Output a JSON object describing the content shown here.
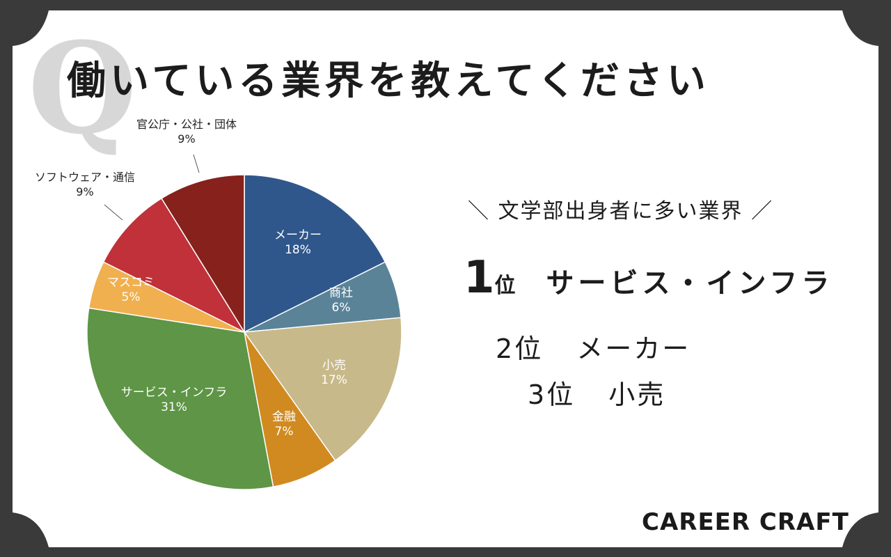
{
  "title": "働いている業界を教えてください",
  "q_mark": "Q",
  "chart_data": {
    "type": "pie",
    "title": "",
    "slices": [
      {
        "label": "メーカー",
        "percent_label": "18%",
        "value": 18,
        "color": "#2f578b",
        "text_color": "#ffffff"
      },
      {
        "label": "商社",
        "percent_label": "6%",
        "value": 6,
        "color": "#5a8398",
        "text_color": "#ffffff"
      },
      {
        "label": "小売",
        "percent_label": "17%",
        "value": 17,
        "color": "#c8b98a",
        "text_color": "#ffffff"
      },
      {
        "label": "金融",
        "percent_label": "7%",
        "value": 7,
        "color": "#d18a1f",
        "text_color": "#ffffff"
      },
      {
        "label": "サービス・インフラ",
        "percent_label": "31%",
        "value": 31,
        "color": "#5e9546",
        "text_color": "#ffffff"
      },
      {
        "label": "マスコミ",
        "percent_label": "5%",
        "value": 5,
        "color": "#f0b04f",
        "text_color": "#ffffff"
      },
      {
        "label": "ソフトウェア・通信",
        "percent_label": "9%",
        "value": 9,
        "color": "#c0313a",
        "text_color": "#222222"
      },
      {
        "label": "官公庁・公社・団体",
        "percent_label": "9%",
        "value": 9,
        "color": "#86211c",
        "text_color": "#222222"
      }
    ]
  },
  "ranking": {
    "heading": "＼ 文学部出身者に多い業界 ／",
    "items": [
      {
        "rank": "1",
        "unit": "位",
        "name": "サービス・インフラ"
      },
      {
        "rank": "2",
        "unit": "位",
        "name": "メーカー"
      },
      {
        "rank": "3",
        "unit": "位",
        "name": "小売"
      }
    ]
  },
  "brand": "CAREER CRAFT",
  "colors": {
    "background": "#3a3a3a",
    "card": "#ffffff",
    "text": "#1c1c1c"
  }
}
